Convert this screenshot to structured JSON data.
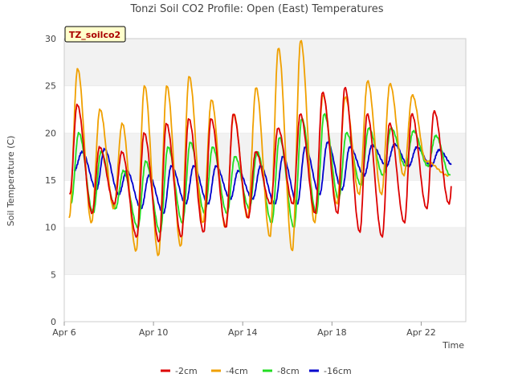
{
  "chart_data": {
    "type": "line",
    "title": "Tonzi Soil CO2 Profile: Open (East) Temperatures",
    "xlabel": "Time",
    "ylabel": "Soil Temperature (C)",
    "badge": "TZ_soilco2",
    "x_start": "2024-04-06",
    "x_ticks": [
      {
        "label": "Apr 6",
        "day": 0
      },
      {
        "label": "Apr 10",
        "day": 4
      },
      {
        "label": "Apr 14",
        "day": 8
      },
      {
        "label": "Apr 18",
        "day": 12
      },
      {
        "label": "Apr 22",
        "day": 16
      }
    ],
    "xlim_days": [
      0,
      18
    ],
    "ylim": [
      0,
      30
    ],
    "y_ticks": [
      0,
      5,
      10,
      15,
      20,
      25,
      30
    ],
    "grid": "horizontal bands",
    "legend_position": "bottom",
    "series": [
      {
        "name": "-2cm",
        "color": "#dd0000",
        "x": [
          0.25,
          0.55,
          0.95,
          1.55,
          1.95,
          2.55,
          2.95,
          3.6,
          3.95,
          4.55,
          4.95,
          5.55,
          5.95,
          6.55,
          6.95,
          7.55,
          7.95,
          8.55,
          8.95,
          9.55,
          9.95,
          10.55,
          10.95,
          11.55,
          11.95,
          12.55,
          12.95,
          13.55,
          13.95,
          14.55,
          14.95,
          15.55,
          15.95,
          16.55,
          16.95,
          17.3
        ],
        "min": [
          13.5,
          11.5,
          12.5,
          9.0,
          8.5,
          9.0,
          9.5,
          10.0,
          11.0,
          12.5,
          12.5,
          11.5,
          11.5,
          9.5,
          9.0,
          10.5,
          12.0,
          12.5,
          14.0,
          15.0,
          16.5,
          16.5,
          15.5,
          15.0,
          16.0,
          13.0,
          15.2
        ],
        "max": [
          23.0,
          18.5,
          18.0,
          20.0,
          21.0,
          21.5,
          21.5,
          22.0,
          18.0,
          20.5,
          22.0,
          24.3,
          24.8,
          22.0,
          21.0,
          22.0,
          22.3,
          22.0,
          22.3,
          23.0,
          21.5
        ]
      },
      {
        "name": "-4cm",
        "color": "#f0a000",
        "min": [
          11.0,
          10.5,
          12.0,
          7.5,
          7.0,
          8.0,
          10.5,
          10.0,
          11.0,
          9.0,
          7.5,
          10.5,
          12.5,
          13.5,
          13.5,
          15.5,
          17.0,
          15.5,
          15.0,
          15.5,
          14.5,
          11.5,
          14.0
        ],
        "max": [
          26.8,
          22.5,
          21.0,
          25.0,
          25.0,
          26.0,
          23.5,
          22.0,
          24.8,
          29.0,
          29.8,
          24.0,
          23.8,
          25.5,
          25.2,
          24.0
        ]
      },
      {
        "name": "-8cm",
        "color": "#22dd22",
        "min": [
          12.5,
          11.5,
          12.0,
          10.0,
          9.5,
          10.5,
          11.5,
          11.5,
          12.0,
          10.5,
          10.0,
          11.5,
          13.0,
          14.5,
          15.5,
          16.5,
          16.5,
          15.5,
          15.5,
          14.0,
          15.0
        ],
        "max": [
          20.0,
          18.0,
          16.0,
          17.0,
          18.5,
          19.0,
          18.5,
          17.5,
          18.0,
          19.5,
          21.5,
          22.0,
          20.0,
          20.5,
          20.5,
          20.2,
          19.7
        ]
      },
      {
        "name": "-16cm",
        "color": "#0000cc",
        "min": [
          16.0,
          14.0,
          13.5,
          12.0,
          11.5,
          12.5,
          12.5,
          13.0,
          13.0,
          12.5,
          12.5,
          13.5,
          14.0,
          15.5,
          16.5,
          16.5,
          16.5,
          16.5,
          15.5,
          15.0,
          16.5
        ],
        "max": [
          18.0,
          18.3,
          16.0,
          15.5,
          16.5,
          16.5,
          16.5,
          16.0,
          16.5,
          17.5,
          18.5,
          19.0,
          18.5,
          18.7,
          18.8,
          18.5,
          18.2
        ]
      }
    ]
  }
}
